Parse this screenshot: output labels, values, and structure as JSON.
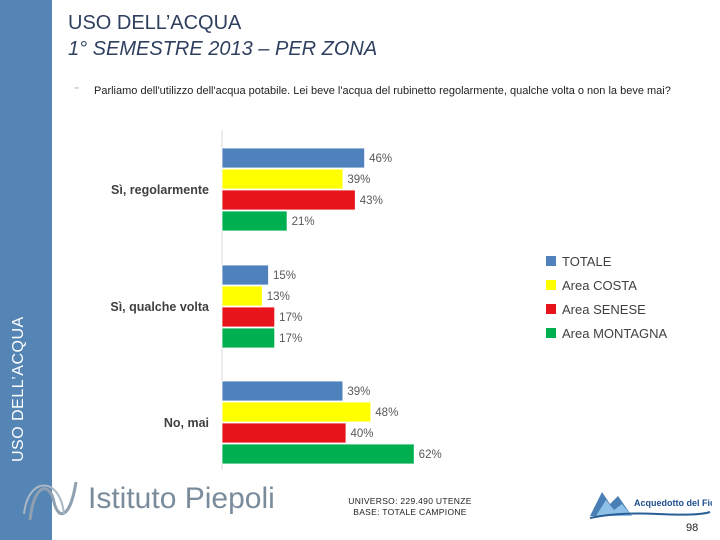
{
  "sidebar": {
    "label": "USO DELL’ACQUA"
  },
  "header": {
    "title_line1": "USO DELL’ACQUA",
    "title_line2": "1° SEMESTRE 2013 – PER ZONA"
  },
  "question": {
    "bullet": "⁻",
    "text": "Parliamo dell'utilizzo dell'acqua potabile. Lei beve l'acqua del rubinetto regolarmente, qualche volta o non la beve mai?"
  },
  "colors": {
    "totale": "#4f81bd",
    "costa": "#ffff00",
    "senese": "#e8141b",
    "montagna": "#00b050",
    "sidebar": "#5585b5"
  },
  "chart_data": {
    "type": "bar",
    "orientation": "horizontal",
    "categories": [
      "Sì, regolarmente",
      "Sì, qualche volta",
      "No, mai"
    ],
    "series": [
      {
        "name": "TOTALE",
        "values": [
          46,
          15,
          39
        ]
      },
      {
        "name": "Area COSTA",
        "values": [
          39,
          13,
          48
        ]
      },
      {
        "name": "Area SENESE",
        "values": [
          43,
          17,
          40
        ]
      },
      {
        "name": "Area MONTAGNA",
        "values": [
          21,
          17,
          62
        ]
      }
    ],
    "unit": "%",
    "legend": "right"
  },
  "footer": {
    "logo_text": "Istituto Piepoli",
    "universe_line1": "UNIVERSO: 229.490 UTENZE",
    "universe_line2": "BASE: TOTALE CAMPIONE",
    "partner_logo": "Acquedotto del Fiora",
    "page_number": "98"
  }
}
